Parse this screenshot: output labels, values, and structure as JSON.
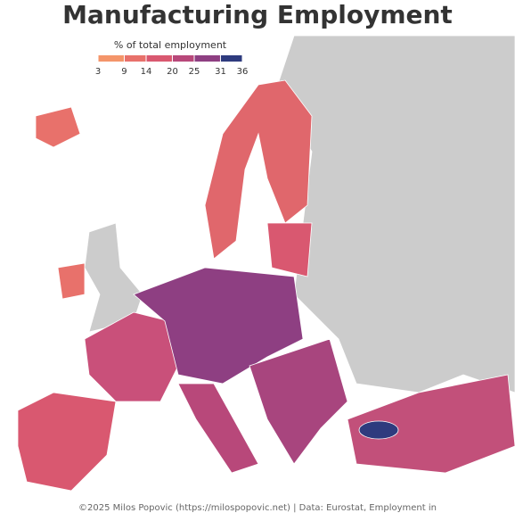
{
  "title": "Manufacturing Employment",
  "legend": {
    "title": "% of total employment",
    "ticks": [
      3,
      9,
      14,
      20,
      25,
      31,
      36
    ],
    "colors": [
      "#f4956a",
      "#e8716b",
      "#d95870",
      "#b8487a",
      "#8e3f82",
      "#2e3b7e"
    ]
  },
  "caption": "©2025 Milos Popovic (https://milospopovic.net) | Data: Eurostat, Employment in"
}
